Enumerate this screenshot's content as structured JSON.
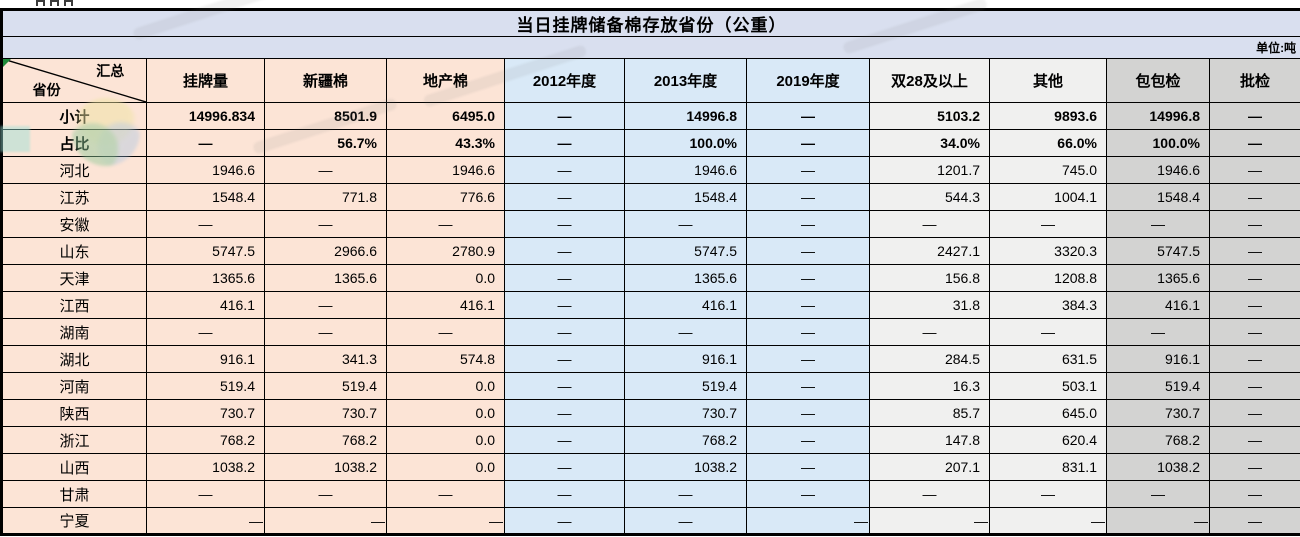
{
  "title": "当日挂牌储备棉存放省份（公重）",
  "unit_label": "单位:吨",
  "corner": {
    "top": "汇总",
    "bottom": "省份"
  },
  "columns": [
    "挂牌量",
    "新疆棉",
    "地产棉",
    "2012年度",
    "2013年度",
    "2019年度",
    "双28及以上",
    "其他",
    "包包检",
    "批检"
  ],
  "column_groups": [
    "peach",
    "peach",
    "peach",
    "blue",
    "blue",
    "blue",
    "lgray",
    "lgray",
    "gray",
    "gray"
  ],
  "rows": [
    {
      "label": "小计",
      "bold": true,
      "values": [
        "14996.834",
        "8501.9",
        "6495.0",
        "—",
        "14996.8",
        "—",
        "5103.2",
        "9893.6",
        "14996.8",
        "—"
      ]
    },
    {
      "label": "占比",
      "bold": true,
      "values": [
        "—",
        "56.7%",
        "43.3%",
        "—",
        "100.0%",
        "—",
        "34.0%",
        "66.0%",
        "100.0%",
        "—"
      ]
    },
    {
      "label": "河北",
      "bold": false,
      "values": [
        "1946.6",
        "—",
        "1946.6",
        "—",
        "1946.6",
        "—",
        "1201.7",
        "745.0",
        "1946.6",
        "—"
      ]
    },
    {
      "label": "江苏",
      "bold": false,
      "values": [
        "1548.4",
        "771.8",
        "776.6",
        "—",
        "1548.4",
        "—",
        "544.3",
        "1004.1",
        "1548.4",
        "—"
      ]
    },
    {
      "label": "安徽",
      "bold": false,
      "values": [
        "—",
        "—",
        "—",
        "—",
        "—",
        "—",
        "—",
        "—",
        "—",
        "—"
      ]
    },
    {
      "label": "山东",
      "bold": false,
      "values": [
        "5747.5",
        "2966.6",
        "2780.9",
        "—",
        "5747.5",
        "—",
        "2427.1",
        "3320.3",
        "5747.5",
        "—"
      ]
    },
    {
      "label": "天津",
      "bold": false,
      "values": [
        "1365.6",
        "1365.6",
        "0.0",
        "—",
        "1365.6",
        "—",
        "156.8",
        "1208.8",
        "1365.6",
        "—"
      ]
    },
    {
      "label": "江西",
      "bold": false,
      "values": [
        "416.1",
        "—",
        "416.1",
        "—",
        "416.1",
        "—",
        "31.8",
        "384.3",
        "416.1",
        "—"
      ]
    },
    {
      "label": "湖南",
      "bold": false,
      "values": [
        "—",
        "—",
        "—",
        "—",
        "—",
        "—",
        "—",
        "—",
        "—",
        "—"
      ]
    },
    {
      "label": "湖北",
      "bold": false,
      "values": [
        "916.1",
        "341.3",
        "574.8",
        "—",
        "916.1",
        "—",
        "284.5",
        "631.5",
        "916.1",
        "—"
      ]
    },
    {
      "label": "河南",
      "bold": false,
      "values": [
        "519.4",
        "519.4",
        "0.0",
        "—",
        "519.4",
        "—",
        "16.3",
        "503.1",
        "519.4",
        "—"
      ]
    },
    {
      "label": "陕西",
      "bold": false,
      "values": [
        "730.7",
        "730.7",
        "0.0",
        "—",
        "730.7",
        "—",
        "85.7",
        "645.0",
        "730.7",
        "—"
      ]
    },
    {
      "label": "浙江",
      "bold": false,
      "values": [
        "768.2",
        "768.2",
        "0.0",
        "—",
        "768.2",
        "—",
        "147.8",
        "620.4",
        "768.2",
        "—"
      ]
    },
    {
      "label": "山西",
      "bold": false,
      "values": [
        "1038.2",
        "1038.2",
        "0.0",
        "—",
        "1038.2",
        "—",
        "207.1",
        "831.1",
        "1038.2",
        "—"
      ]
    },
    {
      "label": "甘肃",
      "bold": false,
      "values": [
        "—",
        "—",
        "—",
        "—",
        "—",
        "—",
        "—",
        "—",
        "—",
        "—"
      ]
    },
    {
      "label": "宁夏",
      "bold": false,
      "values": [
        "—",
        "—",
        "—",
        "—",
        "—",
        "—",
        "—",
        "—",
        "—",
        "—"
      ],
      "flush_right_dashes": [
        0,
        1,
        2,
        5,
        6,
        7,
        8
      ]
    }
  ],
  "colors": {
    "title_bg": "#d9dfef",
    "province_bg": "#fce4d6",
    "year_bg": "#d9e9f7",
    "quality_bg": "#f0f0ef",
    "inspection_bg": "#d3d3d2",
    "border": "#000000",
    "corner_marker": "#1f8a3b"
  }
}
